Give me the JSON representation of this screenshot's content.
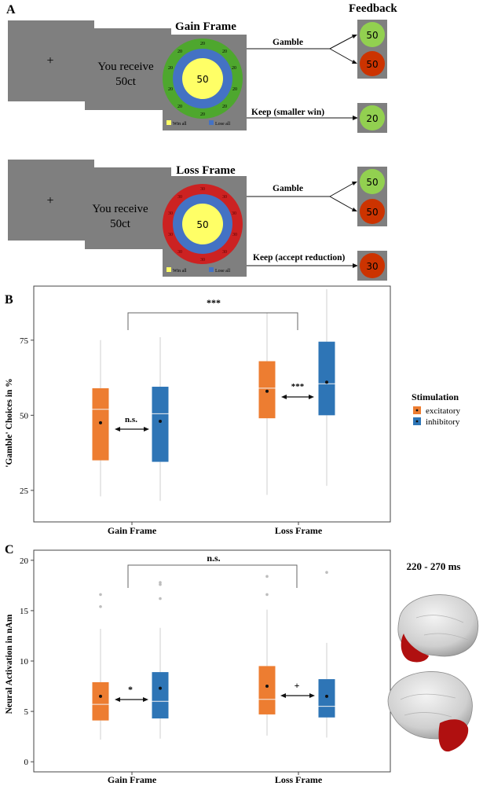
{
  "panel_a": {
    "label": "A",
    "feedback_title": "Feedback",
    "gain": {
      "frame_title": "Gain Frame",
      "fixation": "+",
      "receive_line1": "You receive",
      "receive_line2": "50ct",
      "center_value": "50",
      "ring_number": "20",
      "legend_win": "Win all",
      "legend_lose": "Lose all",
      "gamble_label": "Gamble",
      "keep_label": "Keep (smaller win)",
      "feedback_win": "50",
      "feedback_lose": "50",
      "feedback_keep": "20"
    },
    "loss": {
      "frame_title": "Loss Frame",
      "fixation": "+",
      "receive_line1": "You receive",
      "receive_line2": "50ct",
      "center_value": "50",
      "ring_number": "30",
      "legend_win": "Win all",
      "legend_lose": "Lose all",
      "gamble_label": "Gamble",
      "keep_label": "Keep (accept reduction)",
      "feedback_win": "50",
      "feedback_lose": "50",
      "feedback_keep": "30"
    }
  },
  "panel_b": {
    "label": "B",
    "legend_title": "Stimulation",
    "legend_items": [
      "excitatory",
      "inhibitory"
    ],
    "sig_between": "***",
    "sig_gain": "n.s.",
    "sig_loss": "***"
  },
  "panel_c": {
    "label": "C",
    "time_window": "220 - 270 ms",
    "sig_between": "n.s.",
    "sig_gain": "*",
    "sig_loss": "+"
  },
  "colors": {
    "excitatory": "#ed7d31",
    "inhibitory": "#2e75b6",
    "gray_screen": "#7f7f7f",
    "gain_ring": "#4ea72e",
    "loss_ring": "#cc2222",
    "middle_ring": "#4472c4",
    "center": "#ffff66",
    "fb_green": "#92d050",
    "fb_red": "#cc3300"
  },
  "chart_data": [
    {
      "type": "box",
      "panel": "B",
      "title": "",
      "xlabel": "",
      "ylabel": "'Gamble' Choices in %",
      "categories": [
        "Gain Frame",
        "Loss Frame"
      ],
      "yticks": [
        25,
        50,
        75
      ],
      "ylim": [
        14.5,
        93
      ],
      "series": [
        {
          "name": "excitatory",
          "boxes": [
            {
              "category": "Gain Frame",
              "whisker_low": 23,
              "q1": 35,
              "median": 52,
              "q3": 59,
              "whisker_high": 75,
              "mean": 47.5,
              "outliers": []
            },
            {
              "category": "Loss Frame",
              "whisker_low": 23.5,
              "q1": 49,
              "median": 59,
              "q3": 68,
              "whisker_high": 84,
              "mean": 58,
              "outliers": []
            }
          ]
        },
        {
          "name": "inhibitory",
          "boxes": [
            {
              "category": "Gain Frame",
              "whisker_low": 21.5,
              "q1": 34.5,
              "median": 50.5,
              "q3": 59.5,
              "whisker_high": 76,
              "mean": 48,
              "outliers": []
            },
            {
              "category": "Loss Frame",
              "whisker_low": 26.5,
              "q1": 50,
              "median": 60.5,
              "q3": 74.5,
              "whisker_high": 92,
              "mean": 61,
              "outliers": []
            }
          ]
        }
      ]
    },
    {
      "type": "box",
      "panel": "C",
      "title": "",
      "xlabel": "",
      "ylabel": "Neural Activation in nAm",
      "categories": [
        "Gain Frame",
        "Loss Frame"
      ],
      "yticks": [
        0,
        5,
        10,
        15,
        20
      ],
      "ylim": [
        -1,
        21
      ],
      "series": [
        {
          "name": "excitatory",
          "boxes": [
            {
              "category": "Gain Frame",
              "whisker_low": 2.2,
              "q1": 4.1,
              "median": 5.7,
              "q3": 7.9,
              "whisker_high": 13.2,
              "mean": 6.5,
              "outliers": [
                15.4,
                16.6
              ]
            },
            {
              "category": "Loss Frame",
              "whisker_low": 2.6,
              "q1": 4.7,
              "median": 6.2,
              "q3": 9.5,
              "whisker_high": 15.1,
              "mean": 7.5,
              "outliers": [
                16.6,
                18.4
              ]
            }
          ]
        },
        {
          "name": "inhibitory",
          "boxes": [
            {
              "category": "Gain Frame",
              "whisker_low": 2.3,
              "q1": 4.3,
              "median": 6.0,
              "q3": 8.9,
              "whisker_high": 13.3,
              "mean": 7.3,
              "outliers": [
                16.2,
                17.6,
                17.8
              ]
            },
            {
              "category": "Loss Frame",
              "whisker_low": 2.4,
              "q1": 4.4,
              "median": 5.5,
              "q3": 8.2,
              "whisker_high": 11.8,
              "mean": 6.5,
              "outliers": [
                18.8
              ]
            }
          ]
        }
      ]
    }
  ]
}
